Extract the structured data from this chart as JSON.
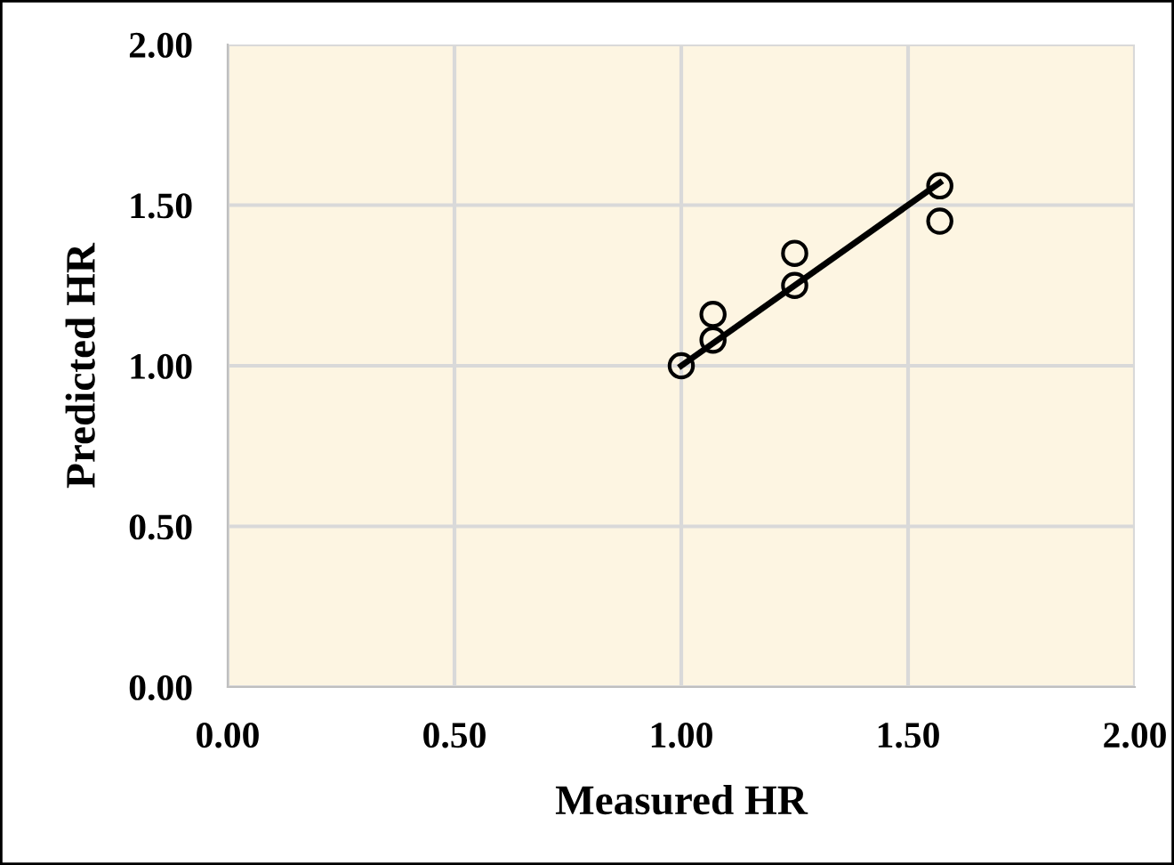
{
  "chart_data": {
    "type": "scatter",
    "xlabel": "Measured HR",
    "ylabel": "Predicted HR",
    "xlim": [
      0,
      2
    ],
    "ylim": [
      0,
      2
    ],
    "xticks": [
      {
        "value": 0,
        "label": "0.00"
      },
      {
        "value": 0.5,
        "label": "0.50"
      },
      {
        "value": 1,
        "label": "1.00"
      },
      {
        "value": 1.5,
        "label": "1.50"
      },
      {
        "value": 2,
        "label": "2.00"
      }
    ],
    "yticks": [
      {
        "value": 0,
        "label": "0.00"
      },
      {
        "value": 0.5,
        "label": "0.50"
      },
      {
        "value": 1,
        "label": "1.00"
      },
      {
        "value": 1.5,
        "label": "1.50"
      },
      {
        "value": 2,
        "label": "2.00"
      }
    ],
    "grid": true,
    "series": [
      {
        "marker": "circle",
        "color": "#000000",
        "x": [
          1.0,
          1.07,
          1.07,
          1.25,
          1.25,
          1.57,
          1.57
        ],
        "values": [
          1.0,
          1.08,
          1.16,
          1.25,
          1.35,
          1.56,
          1.45
        ]
      },
      {
        "type": "line",
        "marker": "none",
        "color": "#000000",
        "x": [
          1.0,
          1.57
        ],
        "values": [
          1.0,
          1.57
        ]
      }
    ]
  }
}
